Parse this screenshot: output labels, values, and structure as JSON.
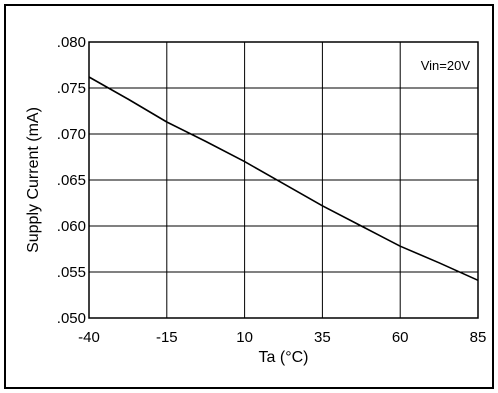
{
  "chart_data": {
    "type": "line",
    "title": "",
    "xlabel": "Ta (°C)",
    "ylabel": "Supply Current (mA)",
    "xlim": [
      -40,
      85
    ],
    "ylim": [
      0.05,
      0.08
    ],
    "x_ticks": [
      -40,
      -15,
      10,
      35,
      60,
      85
    ],
    "x_tick_labels": [
      "-40",
      "-15",
      "10",
      "35",
      "60",
      "85"
    ],
    "y_ticks": [
      0.05,
      0.055,
      0.06,
      0.065,
      0.07,
      0.075,
      0.08
    ],
    "y_tick_labels": [
      ".050",
      ".055",
      ".060",
      ".065",
      ".070",
      ".075",
      ".080"
    ],
    "grid": true,
    "annotation": "Vin=20V",
    "series": [
      {
        "x": [
          -40,
          -27.5,
          -15,
          -2.5,
          10,
          22.5,
          35,
          47.5,
          60,
          72.5,
          85
        ],
        "y": [
          0.0762,
          0.0738,
          0.0713,
          0.0692,
          0.067,
          0.0646,
          0.0622,
          0.06,
          0.0578,
          0.056,
          0.0541
        ]
      }
    ]
  }
}
